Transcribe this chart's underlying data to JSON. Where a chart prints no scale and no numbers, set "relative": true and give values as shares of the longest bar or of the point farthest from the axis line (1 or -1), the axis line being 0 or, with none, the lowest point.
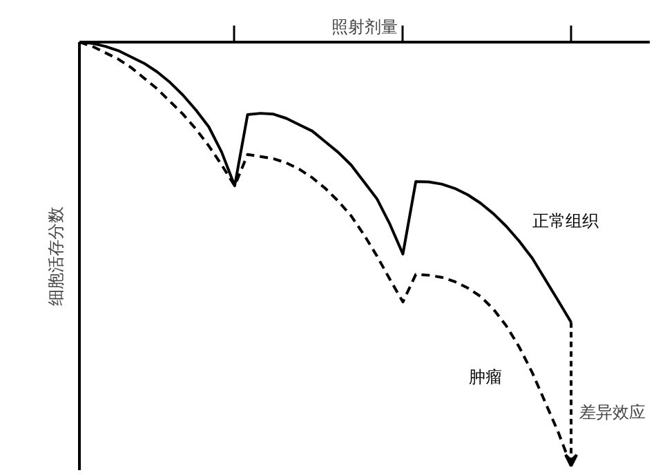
{
  "chart_data": {
    "type": "line",
    "relative": true,
    "xlabel": "照射剂量",
    "ylabel": "细胞活存分数",
    "categories": [
      null,
      null,
      null,
      null,
      null,
      null,
      null,
      null,
      null,
      null,
      null,
      null,
      null,
      null,
      null,
      null,
      null,
      null,
      null,
      null,
      null,
      null,
      null,
      null,
      null,
      null,
      null,
      null,
      null,
      null,
      null,
      null,
      null,
      null,
      null,
      null,
      null,
      null,
      null
    ],
    "grid": false,
    "marker": "none",
    "series": [
      {
        "name": "正常组织",
        "color": "#000000",
        "line_style": "solid",
        "values": [
          0,
          -0.003,
          -0.01,
          -0.02,
          -0.035,
          -0.05,
          -0.07,
          -0.095,
          -0.125,
          -0.16,
          -0.2,
          -0.26,
          -0.339,
          -0.171,
          -0.168,
          -0.17,
          -0.18,
          -0.195,
          -0.21,
          -0.235,
          -0.26,
          -0.29,
          -0.33,
          -0.37,
          -0.43,
          -0.5,
          -0.329,
          -0.33,
          -0.335,
          -0.345,
          -0.36,
          -0.38,
          -0.405,
          -0.435,
          -0.47,
          -0.51,
          -0.56,
          -0.61,
          -0.661
        ]
      },
      {
        "name": "肿瘤",
        "color": "#000000",
        "line_style": "dashed",
        "values": [
          0,
          -0.01,
          -0.025,
          -0.04,
          -0.06,
          -0.085,
          -0.11,
          -0.14,
          -0.17,
          -0.205,
          -0.245,
          -0.29,
          -0.339,
          -0.265,
          -0.27,
          -0.275,
          -0.285,
          -0.3,
          -0.32,
          -0.345,
          -0.375,
          -0.41,
          -0.455,
          -0.505,
          -0.56,
          -0.613,
          -0.548,
          -0.55,
          -0.555,
          -0.565,
          -0.58,
          -0.6,
          -0.63,
          -0.67,
          -0.72,
          -0.78,
          -0.85,
          -0.92,
          -1.0
        ]
      }
    ],
    "annotations": [
      "差异效应"
    ]
  }
}
